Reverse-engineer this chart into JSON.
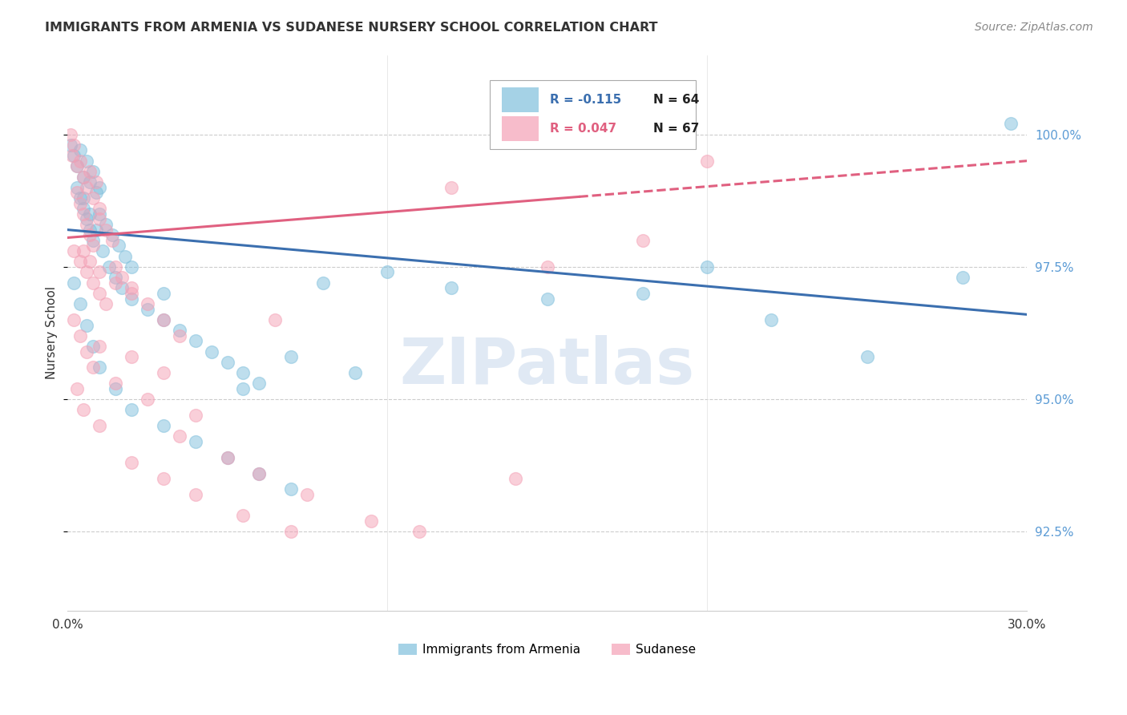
{
  "title": "IMMIGRANTS FROM ARMENIA VS SUDANESE NURSERY SCHOOL CORRELATION CHART",
  "source": "Source: ZipAtlas.com",
  "ylabel": "Nursery School",
  "yticks": [
    92.5,
    95.0,
    97.5,
    100.0
  ],
  "ytick_labels": [
    "92.5%",
    "95.0%",
    "97.5%",
    "100.0%"
  ],
  "xlim": [
    0.0,
    30.0
  ],
  "ylim": [
    91.0,
    101.5
  ],
  "legend_blue_R": "R = -0.115",
  "legend_blue_N": "N = 64",
  "legend_pink_R": "R = 0.047",
  "legend_pink_N": "N = 67",
  "legend_label_blue": "Immigrants from Armenia",
  "legend_label_pink": "Sudanese",
  "blue_color": "#7fbfdc",
  "pink_color": "#f4a0b5",
  "trendline_blue_color": "#3b6faf",
  "trendline_pink_color": "#e06080",
  "text_color_blue": "#3b6faf",
  "text_color_dark": "#222222",
  "background_color": "#ffffff",
  "watermark": "ZIPatlas",
  "pink_dashed_start_x": 16.0,
  "blue_scatter": [
    [
      0.1,
      99.8
    ],
    [
      0.2,
      99.6
    ],
    [
      0.3,
      99.4
    ],
    [
      0.4,
      99.7
    ],
    [
      0.5,
      99.2
    ],
    [
      0.6,
      99.5
    ],
    [
      0.7,
      99.1
    ],
    [
      0.8,
      99.3
    ],
    [
      0.9,
      98.9
    ],
    [
      1.0,
      99.0
    ],
    [
      0.3,
      99.0
    ],
    [
      0.4,
      98.8
    ],
    [
      0.5,
      98.6
    ],
    [
      0.6,
      98.4
    ],
    [
      0.7,
      98.2
    ],
    [
      0.8,
      98.0
    ],
    [
      1.0,
      98.5
    ],
    [
      1.2,
      98.3
    ],
    [
      1.4,
      98.1
    ],
    [
      1.6,
      97.9
    ],
    [
      1.8,
      97.7
    ],
    [
      2.0,
      97.5
    ],
    [
      0.5,
      98.8
    ],
    [
      0.7,
      98.5
    ],
    [
      0.9,
      98.2
    ],
    [
      1.1,
      97.8
    ],
    [
      1.3,
      97.5
    ],
    [
      1.5,
      97.3
    ],
    [
      1.7,
      97.1
    ],
    [
      2.0,
      96.9
    ],
    [
      2.5,
      96.7
    ],
    [
      3.0,
      96.5
    ],
    [
      3.5,
      96.3
    ],
    [
      4.0,
      96.1
    ],
    [
      4.5,
      95.9
    ],
    [
      5.0,
      95.7
    ],
    [
      5.5,
      95.5
    ],
    [
      6.0,
      95.3
    ],
    [
      0.2,
      97.2
    ],
    [
      0.4,
      96.8
    ],
    [
      0.6,
      96.4
    ],
    [
      0.8,
      96.0
    ],
    [
      1.0,
      95.6
    ],
    [
      1.5,
      95.2
    ],
    [
      2.0,
      94.8
    ],
    [
      3.0,
      94.5
    ],
    [
      4.0,
      94.2
    ],
    [
      5.0,
      93.9
    ],
    [
      6.0,
      93.6
    ],
    [
      7.0,
      93.3
    ],
    [
      8.0,
      97.2
    ],
    [
      9.0,
      95.5
    ],
    [
      10.0,
      97.4
    ],
    [
      12.0,
      97.1
    ],
    [
      15.0,
      96.9
    ],
    [
      18.0,
      97.0
    ],
    [
      20.0,
      97.5
    ],
    [
      22.0,
      96.5
    ],
    [
      25.0,
      95.8
    ],
    [
      28.0,
      97.3
    ],
    [
      29.5,
      100.2
    ],
    [
      7.0,
      95.8
    ],
    [
      5.5,
      95.2
    ],
    [
      3.0,
      97.0
    ]
  ],
  "pink_scatter": [
    [
      0.1,
      100.0
    ],
    [
      0.2,
      99.8
    ],
    [
      0.15,
      99.6
    ],
    [
      0.3,
      99.4
    ],
    [
      0.4,
      99.5
    ],
    [
      0.5,
      99.2
    ],
    [
      0.6,
      99.0
    ],
    [
      0.7,
      99.3
    ],
    [
      0.8,
      98.8
    ],
    [
      0.9,
      99.1
    ],
    [
      1.0,
      98.6
    ],
    [
      0.3,
      98.9
    ],
    [
      0.4,
      98.7
    ],
    [
      0.5,
      98.5
    ],
    [
      0.6,
      98.3
    ],
    [
      0.7,
      98.1
    ],
    [
      0.8,
      97.9
    ],
    [
      1.0,
      98.4
    ],
    [
      1.2,
      98.2
    ],
    [
      1.4,
      98.0
    ],
    [
      0.2,
      97.8
    ],
    [
      0.4,
      97.6
    ],
    [
      0.6,
      97.4
    ],
    [
      0.8,
      97.2
    ],
    [
      1.0,
      97.0
    ],
    [
      1.2,
      96.8
    ],
    [
      1.5,
      97.5
    ],
    [
      1.7,
      97.3
    ],
    [
      2.0,
      97.1
    ],
    [
      0.5,
      97.8
    ],
    [
      0.7,
      97.6
    ],
    [
      1.0,
      97.4
    ],
    [
      1.5,
      97.2
    ],
    [
      2.0,
      97.0
    ],
    [
      2.5,
      96.8
    ],
    [
      3.0,
      96.5
    ],
    [
      3.5,
      96.2
    ],
    [
      0.2,
      96.5
    ],
    [
      0.4,
      96.2
    ],
    [
      0.6,
      95.9
    ],
    [
      0.8,
      95.6
    ],
    [
      1.5,
      95.3
    ],
    [
      2.5,
      95.0
    ],
    [
      4.0,
      94.7
    ],
    [
      1.0,
      96.0
    ],
    [
      2.0,
      95.8
    ],
    [
      3.0,
      95.5
    ],
    [
      0.3,
      95.2
    ],
    [
      0.5,
      94.8
    ],
    [
      1.0,
      94.5
    ],
    [
      2.0,
      93.8
    ],
    [
      3.0,
      93.5
    ],
    [
      4.0,
      93.2
    ],
    [
      5.5,
      92.8
    ],
    [
      7.0,
      92.5
    ],
    [
      3.5,
      94.3
    ],
    [
      5.0,
      93.9
    ],
    [
      6.0,
      93.6
    ],
    [
      7.5,
      93.2
    ],
    [
      9.5,
      92.7
    ],
    [
      11.0,
      92.5
    ],
    [
      14.0,
      93.5
    ],
    [
      15.0,
      97.5
    ],
    [
      18.0,
      98.0
    ],
    [
      20.0,
      99.5
    ],
    [
      12.0,
      99.0
    ],
    [
      6.5,
      96.5
    ]
  ]
}
